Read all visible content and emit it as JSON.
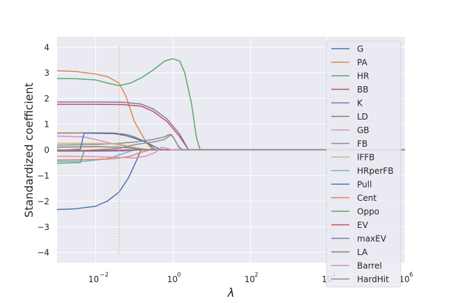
{
  "chart_data": {
    "type": "line",
    "xlabel": "λ",
    "ylabel": "Standardized coefficient",
    "xscale": "log",
    "xlim": [
      0.001,
      1000000
    ],
    "ylim": [
      -4.4,
      4.4
    ],
    "x_tick_labels": [
      {
        "exp": "-2",
        "label": "10"
      },
      {
        "exp": "0",
        "label": "10"
      },
      {
        "exp": "2",
        "label": "10"
      },
      {
        "exp": "4",
        "label": "10"
      },
      {
        "exp": "6",
        "label": "10"
      }
    ],
    "y_tick_labels": [
      "4",
      "3",
      "2",
      "1",
      "0",
      "−1",
      "−2",
      "−3",
      "−4"
    ],
    "grid": true,
    "legend_position": "upper-right",
    "selected_lambda": 0.04,
    "series": [
      {
        "name": "G",
        "color": "#4C72B0",
        "points": [
          [
            0.001,
            -2.33
          ],
          [
            0.003,
            -2.3
          ],
          [
            0.01,
            -2.2
          ],
          [
            0.02,
            -2.0
          ],
          [
            0.04,
            -1.65
          ],
          [
            0.07,
            -1.1
          ],
          [
            0.1,
            -0.6
          ],
          [
            0.15,
            0
          ],
          [
            1000000,
            0
          ]
        ]
      },
      {
        "name": "PA",
        "color": "#DD8452",
        "points": [
          [
            0.001,
            3.08
          ],
          [
            0.003,
            3.05
          ],
          [
            0.01,
            2.95
          ],
          [
            0.02,
            2.85
          ],
          [
            0.04,
            2.6
          ],
          [
            0.06,
            2.1
          ],
          [
            0.1,
            1.1
          ],
          [
            0.2,
            0.3
          ],
          [
            0.3,
            0
          ],
          [
            1000000,
            0
          ]
        ]
      },
      {
        "name": "HR",
        "color": "#55A868",
        "points": [
          [
            0.001,
            2.78
          ],
          [
            0.003,
            2.77
          ],
          [
            0.01,
            2.72
          ],
          [
            0.02,
            2.6
          ],
          [
            0.04,
            2.5
          ],
          [
            0.08,
            2.6
          ],
          [
            0.15,
            2.8
          ],
          [
            0.3,
            3.1
          ],
          [
            0.6,
            3.45
          ],
          [
            1,
            3.55
          ],
          [
            1.5,
            3.45
          ],
          [
            2,
            3.0
          ],
          [
            3,
            1.8
          ],
          [
            4,
            0.5
          ],
          [
            5,
            0
          ],
          [
            1000000,
            0
          ]
        ]
      },
      {
        "name": "BB",
        "color": "#C44E52",
        "points": [
          [
            0.001,
            1.77
          ],
          [
            0.01,
            1.77
          ],
          [
            0.05,
            1.76
          ],
          [
            0.15,
            1.7
          ],
          [
            0.3,
            1.5
          ],
          [
            0.7,
            1.1
          ],
          [
            1.5,
            0.5
          ],
          [
            2.5,
            0
          ],
          [
            1000000,
            0
          ]
        ]
      },
      {
        "name": "K",
        "color": "#8172B3",
        "points": [
          [
            0.001,
            1.86
          ],
          [
            0.01,
            1.86
          ],
          [
            0.05,
            1.85
          ],
          [
            0.15,
            1.78
          ],
          [
            0.3,
            1.6
          ],
          [
            0.7,
            1.2
          ],
          [
            1.5,
            0.6
          ],
          [
            2.5,
            0
          ],
          [
            1000000,
            0
          ]
        ]
      },
      {
        "name": "LD",
        "color": "#937860",
        "points": [
          [
            0.001,
            0.65
          ],
          [
            0.01,
            0.66
          ],
          [
            0.03,
            0.65
          ],
          [
            0.06,
            0.6
          ],
          [
            0.1,
            0.5
          ],
          [
            0.2,
            0.3
          ],
          [
            0.35,
            0
          ],
          [
            1000000,
            0
          ]
        ]
      },
      {
        "name": "GB",
        "color": "#DA8BC3",
        "points": [
          [
            0.001,
            0.53
          ],
          [
            0.005,
            0.5
          ],
          [
            0.01,
            0.4
          ],
          [
            0.02,
            0.28
          ],
          [
            0.04,
            0.18
          ],
          [
            0.08,
            0.1
          ],
          [
            0.15,
            0.04
          ],
          [
            0.25,
            0
          ],
          [
            1000000,
            0
          ]
        ]
      },
      {
        "name": "FB",
        "color": "#8C8C8C",
        "points": [
          [
            0.001,
            0.18
          ],
          [
            0.005,
            0.2
          ],
          [
            0.01,
            0.2
          ],
          [
            0.04,
            0.25
          ],
          [
            0.1,
            0.3
          ],
          [
            0.3,
            0.4
          ],
          [
            0.6,
            0.5
          ],
          [
            0.8,
            0.6
          ],
          [
            1,
            0.5
          ],
          [
            1.3,
            0.2
          ],
          [
            1.6,
            0
          ],
          [
            1000000,
            0
          ]
        ]
      },
      {
        "name": "lFFB",
        "color": "#CCB974",
        "points": [
          [
            0.001,
            0.25
          ],
          [
            0.01,
            0.25
          ],
          [
            0.04,
            0.22
          ],
          [
            0.1,
            0.1
          ],
          [
            0.2,
            0
          ],
          [
            1000000,
            0
          ]
        ]
      },
      {
        "name": "HRperFB",
        "color": "#64B5CD",
        "points": [
          [
            0.001,
            -0.45
          ],
          [
            0.005,
            -0.45
          ],
          [
            0.01,
            -0.4
          ],
          [
            0.02,
            -0.35
          ],
          [
            0.04,
            -0.2
          ],
          [
            0.07,
            -0.08
          ],
          [
            0.1,
            0
          ],
          [
            1000000,
            0
          ]
        ]
      },
      {
        "name": "Pull",
        "color": "#4C72B0",
        "points": [
          [
            0.001,
            -0.02
          ],
          [
            0.004,
            0.02
          ],
          [
            0.005,
            0.65
          ],
          [
            0.03,
            0.63
          ],
          [
            0.06,
            0.55
          ],
          [
            0.1,
            0.45
          ],
          [
            0.2,
            0.3
          ],
          [
            0.35,
            0.1
          ],
          [
            0.5,
            0
          ],
          [
            1000000,
            0
          ]
        ]
      },
      {
        "name": "Cent",
        "color": "#DD8452",
        "points": [
          [
            0.001,
            -0.4
          ],
          [
            0.01,
            -0.38
          ],
          [
            0.03,
            -0.35
          ],
          [
            0.08,
            -0.25
          ],
          [
            0.15,
            -0.1
          ],
          [
            0.25,
            0
          ],
          [
            1000000,
            0
          ]
        ]
      },
      {
        "name": "Oppo",
        "color": "#55A868",
        "points": [
          [
            0.001,
            -0.52
          ],
          [
            0.004,
            -0.5
          ],
          [
            0.005,
            -0.05
          ],
          [
            0.02,
            -0.03
          ],
          [
            0.06,
            -0.02
          ],
          [
            0.15,
            0
          ],
          [
            1000000,
            0
          ]
        ]
      },
      {
        "name": "EV",
        "color": "#C44E52",
        "points": [
          [
            0.001,
            -0.05
          ],
          [
            0.01,
            -0.05
          ],
          [
            0.05,
            -0.04
          ],
          [
            0.15,
            0
          ],
          [
            1000000,
            0
          ]
        ]
      },
      {
        "name": "maxEV",
        "color": "#8172B3",
        "points": [
          [
            0.001,
            -0.02
          ],
          [
            0.01,
            -0.02
          ],
          [
            0.05,
            -0.01
          ],
          [
            0.12,
            0
          ],
          [
            1000000,
            0
          ]
        ]
      },
      {
        "name": "LA",
        "color": "#937860",
        "points": [
          [
            0.001,
            0.1
          ],
          [
            0.01,
            0.12
          ],
          [
            0.04,
            0.1
          ],
          [
            0.1,
            0.05
          ],
          [
            0.2,
            0
          ],
          [
            1000000,
            0
          ]
        ]
      },
      {
        "name": "Barrel",
        "color": "#DA8BC3",
        "points": [
          [
            0.001,
            -0.25
          ],
          [
            0.01,
            -0.27
          ],
          [
            0.05,
            -0.3
          ],
          [
            0.1,
            -0.32
          ],
          [
            0.2,
            -0.25
          ],
          [
            0.35,
            -0.1
          ],
          [
            0.5,
            0.1
          ],
          [
            0.7,
            0.05
          ],
          [
            0.9,
            0
          ],
          [
            1000000,
            0
          ]
        ]
      },
      {
        "name": "HardHit",
        "color": "#8C8C8C",
        "points": [
          [
            0.001,
            0.0
          ],
          [
            0.005,
            -0.02
          ],
          [
            0.01,
            0.0
          ],
          [
            0.04,
            0.05
          ],
          [
            0.1,
            0.2
          ],
          [
            0.3,
            0.3
          ],
          [
            0.6,
            0.4
          ],
          [
            0.9,
            0.6
          ],
          [
            1.1,
            0.4
          ],
          [
            1.4,
            0.1
          ],
          [
            1.8,
            0
          ],
          [
            1000000,
            0
          ]
        ]
      }
    ]
  }
}
